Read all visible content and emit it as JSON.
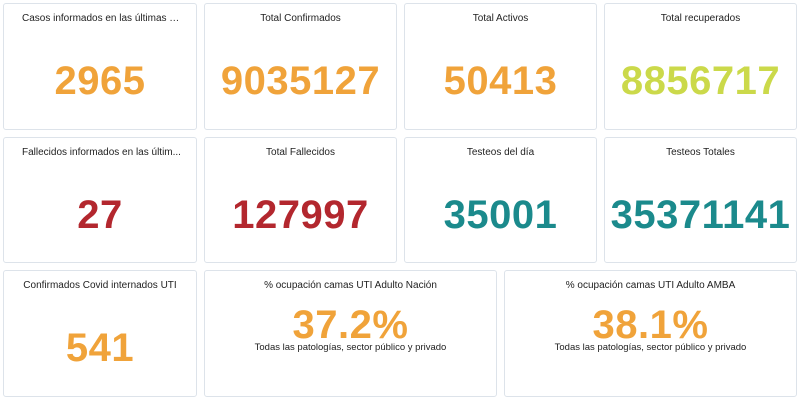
{
  "cards": [
    {
      "title": "Casos informados en las últimas 2...",
      "value": "2965",
      "color": "#f0a33a"
    },
    {
      "title": "Total Confirmados",
      "value": "9035127",
      "color": "#f0a33a"
    },
    {
      "title": "Total Activos",
      "value": "50413",
      "color": "#f0a33a"
    },
    {
      "title": "Total recuperados",
      "value": "8856717",
      "color": "#cbd94a"
    },
    {
      "title": "Fallecidos informados en las últim...",
      "value": "27",
      "color": "#b3272e"
    },
    {
      "title": "Total Fallecidos",
      "value": "127997",
      "color": "#b3272e"
    },
    {
      "title": "Testeos del día",
      "value": "35001",
      "color": "#1b8a8c"
    },
    {
      "title": "Testeos Totales",
      "value": "35371141",
      "color": "#1b8a8c"
    },
    {
      "title": "Confirmados Covid internados UTI",
      "value": "541",
      "color": "#f0a33a"
    },
    {
      "title": "% ocupación camas UTI Adulto Nación",
      "value": "37.2%",
      "subtitle": "Todas las patologías, sector público y privado",
      "color": "#f0a33a"
    },
    {
      "title": "% ocupación camas UTI Adulto AMBA",
      "value": "38.1%",
      "subtitle": "Todas las patologías, sector público y privado",
      "color": "#f0a33a"
    }
  ]
}
